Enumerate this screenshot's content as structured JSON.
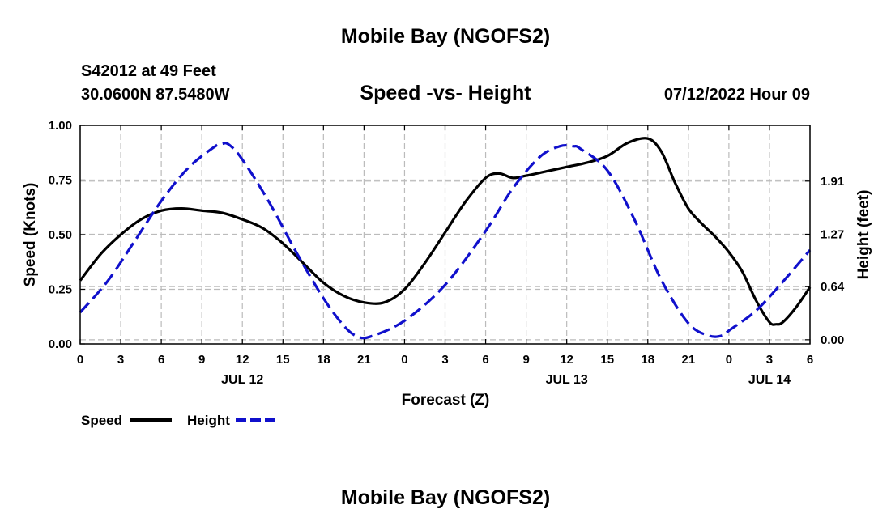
{
  "header": {
    "title": "Mobile Bay (NGOFS2)",
    "station": "S42012 at 49 Feet",
    "coords": "30.0600N  87.5480W",
    "date": "07/12/2022 Hour 09"
  },
  "footer": {
    "title": "Mobile Bay (NGOFS2)"
  },
  "colors": {
    "speed": "#000000",
    "height": "#1010cc",
    "grid": "#bbbbbb"
  },
  "chart_data": {
    "type": "line",
    "title": "Speed -vs- Height",
    "xlabel": "Forecast (Z)",
    "ylabel": "Speed (Knots)",
    "y2label": "Height (feet)",
    "xlim": [
      0,
      54
    ],
    "ylim": [
      0,
      1
    ],
    "y2lim": [
      -0.05,
      2.58
    ],
    "x_ticks": [
      0,
      3,
      6,
      9,
      12,
      15,
      18,
      21,
      24,
      27,
      30,
      33,
      36,
      39,
      42,
      45,
      48,
      51,
      54
    ],
    "x_tick_labels": [
      "0",
      "3",
      "6",
      "9",
      "12",
      "15",
      "18",
      "21",
      "0",
      "3",
      "6",
      "9",
      "12",
      "15",
      "18",
      "21",
      "0",
      "3",
      "6"
    ],
    "y_ticks": [
      0,
      0.25,
      0.5,
      0.75,
      1.0
    ],
    "y_tick_labels": [
      "0.00",
      "0.25",
      "0.50",
      "0.75",
      "1.00"
    ],
    "y2_ticks": [
      0.0,
      0.64,
      1.27,
      1.91
    ],
    "y2_tick_labels": [
      "0.00",
      "0.64",
      "1.27",
      "1.91"
    ],
    "day_labels": [
      {
        "x": 12,
        "label": "JUL 12"
      },
      {
        "x": 36,
        "label": "JUL 13"
      },
      {
        "x": 51,
        "label": "JUL 14"
      }
    ],
    "grid": true,
    "legend_position": "bottom-left",
    "series": [
      {
        "name": "Speed",
        "axis": "left",
        "style": "solid",
        "x": [
          0,
          1.5,
          3,
          4.5,
          6,
          7.5,
          9,
          10.5,
          12,
          13.5,
          15,
          16.5,
          18,
          19.5,
          21,
          22.5,
          24,
          25.5,
          27,
          28.5,
          30,
          31,
          32,
          33,
          34.5,
          36,
          37.5,
          39,
          40.5,
          42,
          43,
          44,
          45,
          46,
          47,
          48,
          49,
          50,
          51,
          51.5,
          52,
          53,
          54
        ],
        "values": [
          0.29,
          0.41,
          0.5,
          0.57,
          0.61,
          0.62,
          0.61,
          0.6,
          0.57,
          0.53,
          0.46,
          0.37,
          0.28,
          0.22,
          0.19,
          0.19,
          0.25,
          0.37,
          0.51,
          0.65,
          0.76,
          0.78,
          0.76,
          0.77,
          0.79,
          0.81,
          0.83,
          0.86,
          0.92,
          0.94,
          0.88,
          0.74,
          0.62,
          0.55,
          0.49,
          0.42,
          0.33,
          0.2,
          0.1,
          0.09,
          0.1,
          0.17,
          0.26
        ]
      },
      {
        "name": "Height",
        "axis": "right",
        "style": "dashed",
        "x": [
          0,
          2,
          4,
          6,
          8,
          10,
          10.5,
          11,
          12,
          14,
          16,
          18,
          19.5,
          20.5,
          21.5,
          24,
          27,
          30,
          32,
          34,
          35.5,
          36.5,
          37,
          39,
          41,
          43,
          45,
          46.5,
          47.5,
          48,
          50,
          52,
          54
        ],
        "values": [
          0.33,
          0.7,
          1.18,
          1.67,
          2.07,
          2.33,
          2.36,
          2.35,
          2.17,
          1.65,
          1.05,
          0.5,
          0.17,
          0.04,
          0.04,
          0.23,
          0.66,
          1.31,
          1.82,
          2.2,
          2.33,
          2.33,
          2.3,
          2.04,
          1.45,
          0.72,
          0.2,
          0.05,
          0.05,
          0.11,
          0.35,
          0.7,
          1.08
        ]
      }
    ]
  }
}
